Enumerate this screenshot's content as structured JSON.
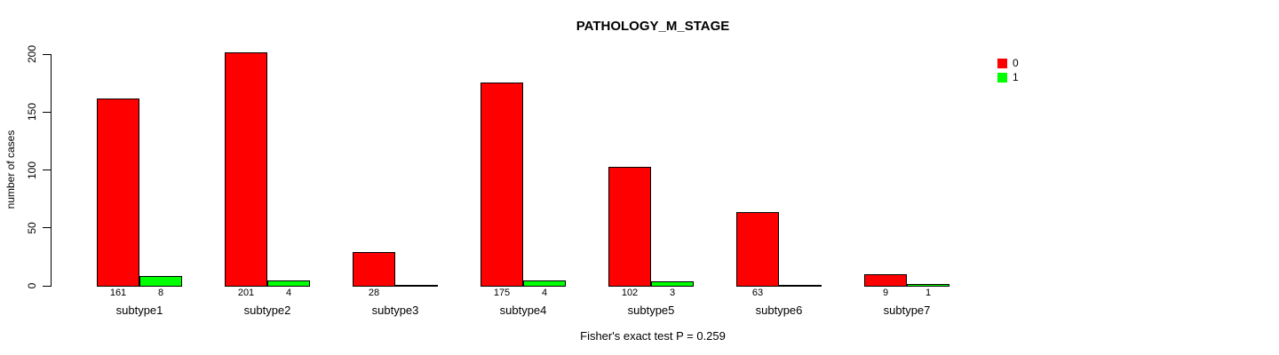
{
  "window": {
    "background": "#FFFFFF"
  },
  "chart_data": {
    "type": "bar",
    "title": "PATHOLOGY_M_STAGE",
    "categories": [
      "subtype1",
      "subtype2",
      "subtype3",
      "subtype4",
      "subtype5",
      "subtype6",
      "subtype7"
    ],
    "series": [
      {
        "name": "0",
        "color": "#FF0000",
        "values": [
          161,
          201,
          28,
          175,
          102,
          63,
          9
        ]
      },
      {
        "name": "1",
        "color": "#00FF00",
        "values": [
          8,
          4,
          0,
          4,
          3,
          0,
          1
        ]
      }
    ],
    "bar_value_labels": {
      "shown_when": "value > 0",
      "labels": [
        [
          "161",
          "8"
        ],
        [
          "201",
          "4"
        ],
        [
          "28",
          ""
        ],
        [
          "175",
          "4"
        ],
        [
          "102",
          "3"
        ],
        [
          "63",
          ""
        ],
        [
          "9",
          "1"
        ]
      ]
    },
    "xlabel": "",
    "ylabel": "number of cases",
    "ylim": [
      0,
      200
    ],
    "yticks": [
      0,
      50,
      100,
      150,
      200
    ],
    "grid": false,
    "legend_position": "top-right",
    "legend_entries": [
      {
        "label": "0",
        "color": "#FF0000"
      },
      {
        "label": "1",
        "color": "#00FF00"
      }
    ],
    "annotation": "Fisher's exact test P = 0.259",
    "bar_outline_color": "#000000",
    "axis_color": "#000000"
  }
}
